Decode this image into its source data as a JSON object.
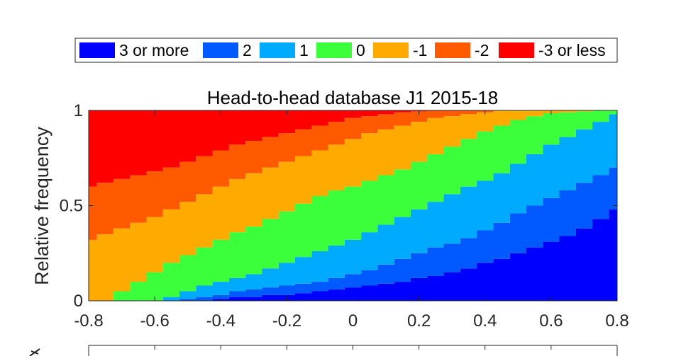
{
  "chart_data": {
    "type": "area",
    "title": "Head-to-head database J1 2015-18",
    "xlabel": "",
    "ylabel": "Relative frequency",
    "xlim": [
      -0.8,
      0.8
    ],
    "ylim": [
      0,
      1
    ],
    "xticks": [
      "-0.8",
      "-0.6",
      "-0.4",
      "-0.2",
      "0",
      "0.2",
      "0.4",
      "0.6",
      "0.8"
    ],
    "yticks": [
      "0",
      "0.5",
      "1"
    ],
    "grid": false,
    "legend_position": "top",
    "legend_orientation": "horizontal",
    "series": [
      {
        "name": "3 or more",
        "color": "#0000ff"
      },
      {
        "name": "2",
        "color": "#005aff"
      },
      {
        "name": "1",
        "color": "#00aaff"
      },
      {
        "name": "0",
        "color": "#3cff3c"
      },
      {
        "name": "-1",
        "color": "#ffaa00"
      },
      {
        "name": "-2",
        "color": "#ff5a00"
      },
      {
        "name": "-3 or less",
        "color": "#ff0000"
      }
    ],
    "boundary_x": [
      -0.8,
      -0.75,
      -0.7,
      -0.65,
      -0.6,
      -0.55,
      -0.5,
      -0.45,
      -0.4,
      -0.35,
      -0.3,
      -0.25,
      -0.2,
      -0.15,
      -0.1,
      -0.05,
      0,
      0.05,
      0.1,
      0.15,
      0.2,
      0.25,
      0.3,
      0.35,
      0.4,
      0.45,
      0.5,
      0.55,
      0.6,
      0.65,
      0.7,
      0.75,
      0.8
    ],
    "cumulative_boundaries": [
      [
        0,
        0,
        0,
        0,
        0,
        0,
        0,
        0,
        0.01,
        0.02,
        0.02,
        0.03,
        0.03,
        0.04,
        0.05,
        0.06,
        0.07,
        0.08,
        0.09,
        0.1,
        0.12,
        0.13,
        0.15,
        0.17,
        0.2,
        0.22,
        0.25,
        0.28,
        0.31,
        0.34,
        0.38,
        0.43,
        0.48
      ],
      [
        0,
        0,
        0,
        0,
        0,
        0,
        0.01,
        0.02,
        0.03,
        0.05,
        0.06,
        0.07,
        0.08,
        0.09,
        0.1,
        0.12,
        0.14,
        0.16,
        0.19,
        0.22,
        0.25,
        0.28,
        0.3,
        0.33,
        0.37,
        0.41,
        0.46,
        0.5,
        0.54,
        0.58,
        0.62,
        0.66,
        0.7
      ],
      [
        0,
        0,
        0,
        0,
        0,
        0.02,
        0.05,
        0.08,
        0.1,
        0.12,
        0.14,
        0.17,
        0.2,
        0.23,
        0.26,
        0.29,
        0.32,
        0.36,
        0.4,
        0.44,
        0.48,
        0.52,
        0.56,
        0.6,
        0.63,
        0.67,
        0.72,
        0.77,
        0.82,
        0.86,
        0.9,
        0.94,
        0.98
      ],
      [
        0,
        0,
        0.05,
        0.1,
        0.15,
        0.2,
        0.24,
        0.28,
        0.32,
        0.36,
        0.39,
        0.43,
        0.47,
        0.51,
        0.55,
        0.58,
        0.6,
        0.63,
        0.66,
        0.69,
        0.73,
        0.77,
        0.81,
        0.85,
        0.89,
        0.92,
        0.95,
        0.97,
        0.985,
        0.99,
        0.995,
        1,
        1
      ],
      [
        0.32,
        0.35,
        0.38,
        0.41,
        0.44,
        0.48,
        0.52,
        0.56,
        0.6,
        0.64,
        0.67,
        0.7,
        0.73,
        0.76,
        0.79,
        0.82,
        0.85,
        0.88,
        0.9,
        0.92,
        0.94,
        0.96,
        0.97,
        0.98,
        0.99,
        1,
        1,
        1,
        1,
        1,
        1,
        1,
        1
      ],
      [
        0.6,
        0.62,
        0.64,
        0.66,
        0.68,
        0.7,
        0.73,
        0.76,
        0.79,
        0.82,
        0.84,
        0.86,
        0.88,
        0.9,
        0.92,
        0.94,
        0.96,
        0.97,
        0.98,
        0.99,
        0.995,
        1,
        1,
        1,
        1,
        1,
        1,
        1,
        1,
        1,
        1,
        1,
        1
      ]
    ]
  }
}
